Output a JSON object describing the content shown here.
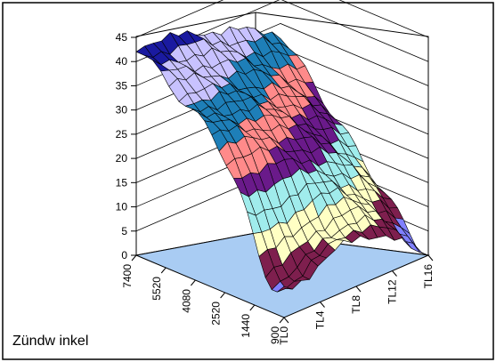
{
  "chart_data": {
    "type": "surface",
    "title": "",
    "zlabel": "Zündw inkel",
    "zlim": [
      0,
      45
    ],
    "z_ticks": [
      "0",
      "5",
      "10",
      "15",
      "20",
      "25",
      "30",
      "35",
      "40",
      "45"
    ],
    "rpm_labels": [
      "7400",
      "5520",
      "4080",
      "2520",
      "1440",
      "900"
    ],
    "load_labels": [
      "TL0",
      "TL4",
      "TL8",
      "TL12",
      "TL16"
    ],
    "rpm": [
      7400,
      7040,
      6680,
      6320,
      5960,
      5520,
      5240,
      4960,
      4680,
      4400,
      4080,
      3760,
      3440,
      3120,
      2820,
      2520,
      2260,
      2000,
      1720,
      1440,
      1200,
      900
    ],
    "load": [
      0,
      1,
      2,
      3,
      4,
      5,
      6,
      7,
      8,
      9,
      10,
      11,
      12,
      13,
      14,
      15,
      16,
      17
    ],
    "bands": [
      {
        "from": 0,
        "to": 5,
        "color": "#8080ff"
      },
      {
        "from": 5,
        "to": 10,
        "color": "#7e1f4e"
      },
      {
        "from": 10,
        "to": 15,
        "color": "#ffffc4"
      },
      {
        "from": 15,
        "to": 20,
        "color": "#a0ecec"
      },
      {
        "from": 20,
        "to": 25,
        "color": "#6a1a8a"
      },
      {
        "from": 25,
        "to": 30,
        "color": "#ff8a8a"
      },
      {
        "from": 30,
        "to": 35,
        "color": "#1e7fb8"
      },
      {
        "from": 35,
        "to": 40,
        "color": "#c8c2ff"
      },
      {
        "from": 40,
        "to": 45,
        "color": "#1a1aa0"
      }
    ],
    "floor_color": "#a9ccf3",
    "grid": true
  }
}
